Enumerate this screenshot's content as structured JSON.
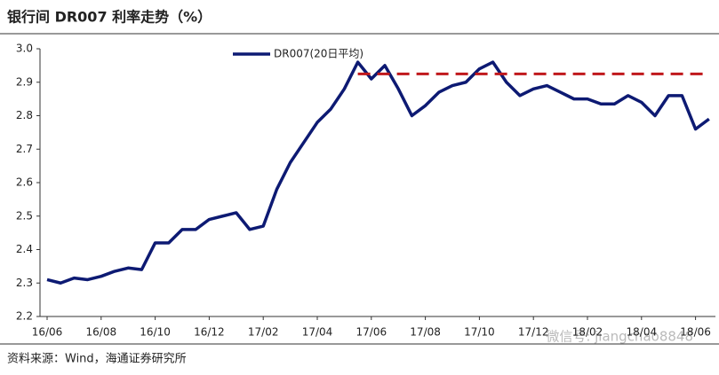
{
  "chart_data": {
    "type": "line",
    "title": "银行间 DR007 利率走势（%）",
    "source": "资料来源：Wind，海通证券研究所",
    "watermark": "微信号: jiangchao8848",
    "categories": [
      "16/06",
      null,
      null,
      null,
      "16/08",
      null,
      null,
      null,
      "16/10",
      null,
      null,
      null,
      "16/12",
      null,
      null,
      null,
      "17/02",
      null,
      null,
      null,
      "17/04",
      null,
      null,
      null,
      "17/06",
      null,
      null,
      null,
      "17/08",
      null,
      null,
      null,
      "17/10",
      null,
      null,
      null,
      "17/12",
      null,
      null,
      null,
      "18/02",
      null,
      null,
      null,
      "18/04",
      null,
      null,
      null,
      "18/06",
      null
    ],
    "series": [
      {
        "name": "DR007(20日平均)",
        "color": "#0d1a73",
        "dash": false,
        "values": [
          2.31,
          2.3,
          2.315,
          2.31,
          2.32,
          2.335,
          2.345,
          2.34,
          2.42,
          2.42,
          2.46,
          2.46,
          2.49,
          2.5,
          2.51,
          2.46,
          2.47,
          2.58,
          2.66,
          2.72,
          2.78,
          2.82,
          2.88,
          2.96,
          2.91,
          2.95,
          2.88,
          2.8,
          2.83,
          2.87,
          2.89,
          2.9,
          2.94,
          2.96,
          2.9,
          2.86,
          2.88,
          2.89,
          2.87,
          2.85,
          2.85,
          2.835,
          2.835,
          2.86,
          2.84,
          2.8,
          2.86,
          2.86,
          2.76,
          2.79
        ]
      },
      {
        "color": "#c0181c",
        "dash": true,
        "values": [
          null,
          null,
          null,
          null,
          null,
          null,
          null,
          null,
          null,
          null,
          null,
          null,
          null,
          null,
          null,
          null,
          null,
          null,
          null,
          null,
          null,
          null,
          null,
          2.925,
          2.925,
          2.925,
          2.925,
          2.925,
          2.925,
          2.925,
          2.925,
          2.925,
          2.925,
          2.925,
          2.925,
          2.925,
          2.925,
          2.925,
          2.925,
          2.925,
          2.925,
          2.925,
          2.925,
          2.925,
          2.925,
          2.925,
          2.925,
          2.925,
          2.925,
          2.925
        ]
      }
    ],
    "ylim": [
      2.2,
      3.0
    ],
    "yticks": [
      2.2,
      2.3,
      2.4,
      2.5,
      2.6,
      2.7,
      2.8,
      2.9,
      {
        "value": 3.0,
        "label": "3.0"
      }
    ],
    "grid": false
  }
}
